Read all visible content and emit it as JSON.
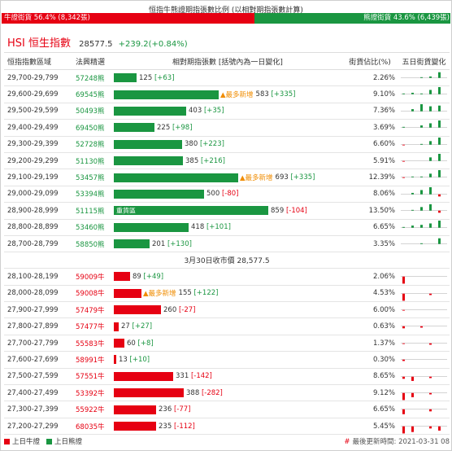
{
  "title": "恒指牛熊證期指張數比例 (以相對期指張數計算)",
  "ratio": {
    "bull_label": "牛證街貨 56.4% (8,342張)",
    "bear_label": "熊證街貨 43.6% (6,439張)",
    "bull_pct": 56.4,
    "bear_pct": 43.6
  },
  "index": {
    "name": "HSI 恒生指數",
    "price": "28577.5",
    "change": "+239.2(+0.84%)"
  },
  "headers": {
    "range": "恒指指數區域",
    "code": "法興精選",
    "bar": "相對期指張數 [括號內為一日變化]",
    "ratio": "街貨佔比(%)",
    "spark": "五日街貨變化"
  },
  "colors": {
    "bull": "#e60012",
    "bear": "#1a9641",
    "new": "#f08c00"
  },
  "bear_rows": [
    {
      "range": "29,700-29,799",
      "code": "57248熊",
      "value": 125,
      "delta": "+63",
      "ratio": "2.26%",
      "tag": "",
      "spark": [
        0,
        0,
        1,
        2,
        8
      ]
    },
    {
      "range": "29,600-29,699",
      "code": "69545熊",
      "value": 583,
      "delta": "+335",
      "ratio": "9.10%",
      "tag": "▲最多新增",
      "spark": [
        1,
        2,
        1,
        6,
        10
      ]
    },
    {
      "range": "29,500-29,599",
      "code": "50493熊",
      "value": 403,
      "delta": "+35",
      "ratio": "7.36%",
      "tag": "",
      "spark": [
        0,
        3,
        10,
        7,
        8
      ]
    },
    {
      "range": "29,400-29,499",
      "code": "69450熊",
      "value": 225,
      "delta": "+98",
      "ratio": "3.69%",
      "tag": "",
      "spark": [
        1,
        0,
        3,
        6,
        10
      ]
    },
    {
      "range": "29,300-29,399",
      "code": "52728熊",
      "value": 380,
      "delta": "+223",
      "ratio": "6.60%",
      "tag": "",
      "spark": [
        -1,
        0,
        1,
        5,
        10
      ]
    },
    {
      "range": "29,200-29,299",
      "code": "51130熊",
      "value": 385,
      "delta": "+216",
      "ratio": "5.91%",
      "tag": "",
      "spark": [
        -1,
        0,
        0,
        5,
        10
      ]
    },
    {
      "range": "29,100-29,199",
      "code": "53457熊",
      "value": 693,
      "delta": "+335",
      "ratio": "12.39%",
      "tag": "▲最多新增",
      "spark": [
        -1,
        1,
        1,
        5,
        10
      ]
    },
    {
      "range": "29,000-29,099",
      "code": "53394熊",
      "value": 500,
      "delta": "-80",
      "ratio": "8.06%",
      "tag": "",
      "spark": [
        0,
        2,
        6,
        10,
        -3
      ]
    },
    {
      "range": "28,900-28,999",
      "code": "51115熊",
      "value": 859,
      "delta": "-104",
      "ratio": "13.50%",
      "tag": "重貨區",
      "spark": [
        0,
        1,
        5,
        9,
        -3
      ]
    },
    {
      "range": "28,800-28,899",
      "code": "53460熊",
      "value": 418,
      "delta": "+101",
      "ratio": "6.65%",
      "tag": "",
      "spark": [
        1,
        3,
        4,
        6,
        10
      ]
    },
    {
      "range": "28,700-28,799",
      "code": "58850熊",
      "value": 201,
      "delta": "+130",
      "ratio": "3.35%",
      "tag": "",
      "spark": [
        0,
        0,
        1,
        0,
        8
      ]
    }
  ],
  "divider": "3月30日收市價 28,577.5",
  "bull_rows": [
    {
      "range": "28,100-28,199",
      "code": "59009牛",
      "value": 89,
      "delta": "+49",
      "ratio": "2.06%",
      "tag": "",
      "spark": [
        -10,
        0,
        0,
        0,
        0
      ]
    },
    {
      "range": "28,000-28,099",
      "code": "59008牛",
      "value": 155,
      "delta": "+122",
      "ratio": "4.53%",
      "tag": "▲最多新增",
      "spark": [
        -10,
        0,
        0,
        -2,
        0
      ]
    },
    {
      "range": "27,900-27,999",
      "code": "57479牛",
      "value": 260,
      "delta": "-27",
      "ratio": "6.00%",
      "tag": "",
      "spark": [
        -1,
        0,
        0,
        0,
        0
      ]
    },
    {
      "range": "27,800-27,899",
      "code": "57477牛",
      "value": 27,
      "delta": "+27",
      "ratio": "0.63%",
      "tag": "",
      "spark": [
        -3,
        0,
        -2,
        0,
        0
      ]
    },
    {
      "range": "27,700-27,799",
      "code": "55583牛",
      "value": 60,
      "delta": "+8",
      "ratio": "1.37%",
      "tag": "",
      "spark": [
        -1,
        0,
        0,
        -2,
        0
      ]
    },
    {
      "range": "27,600-27,699",
      "code": "58991牛",
      "value": 13,
      "delta": "+10",
      "ratio": "0.30%",
      "tag": "",
      "spark": [
        -2,
        0,
        0,
        0,
        0
      ]
    },
    {
      "range": "27,500-27,599",
      "code": "57551牛",
      "value": 331,
      "delta": "-142",
      "ratio": "8.65%",
      "tag": "",
      "spark": [
        -3,
        -6,
        0,
        -2,
        0
      ]
    },
    {
      "range": "27,400-27,499",
      "code": "53392牛",
      "value": 388,
      "delta": "-282",
      "ratio": "9.12%",
      "tag": "",
      "spark": [
        -10,
        -6,
        0,
        -2,
        0
      ]
    },
    {
      "range": "27,300-27,399",
      "code": "55922牛",
      "value": 236,
      "delta": "-77",
      "ratio": "6.65%",
      "tag": "",
      "spark": [
        -7,
        0,
        0,
        -3,
        0
      ]
    },
    {
      "range": "27,200-27,299",
      "code": "68035牛",
      "value": 235,
      "delta": "-112",
      "ratio": "5.45%",
      "tag": "",
      "spark": [
        -10,
        -8,
        0,
        -3,
        -6
      ]
    }
  ],
  "max_value": 859,
  "legend": {
    "bull": "上日牛證",
    "bear": "上日熊證",
    "updated": "最後更新時間: 2021-03-31 08"
  }
}
